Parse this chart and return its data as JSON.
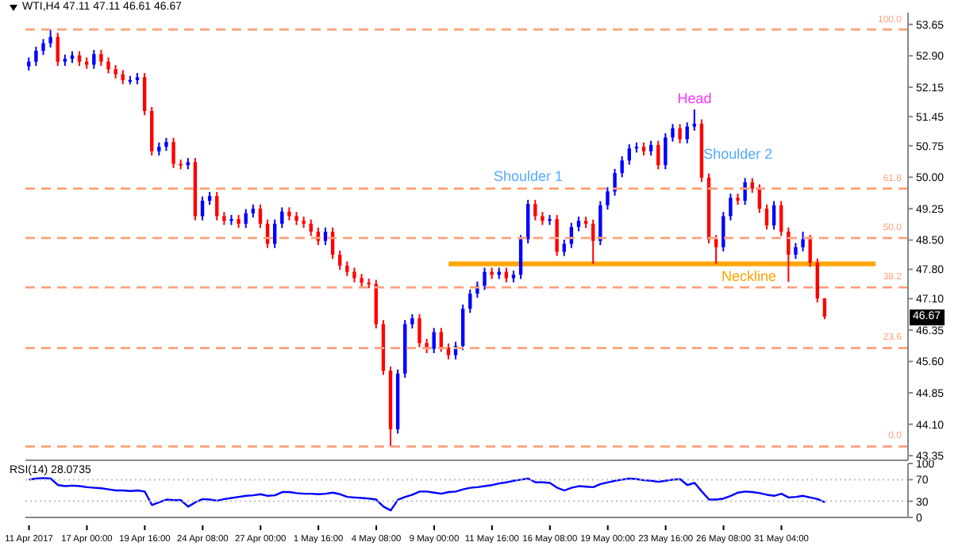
{
  "chart_data": [
    {
      "type": "candlestick",
      "title": "WTI,H4  47.11 47.11 46.61 46.67",
      "categories": [
        null,
        null,
        null,
        null,
        null,
        null,
        null,
        null,
        null,
        null,
        null,
        null,
        null,
        null,
        null,
        null,
        null,
        null,
        null,
        null,
        null,
        null,
        null,
        null,
        null,
        null,
        null,
        null,
        null,
        null,
        null,
        null,
        null,
        null,
        null,
        null,
        null,
        null,
        null,
        null,
        null,
        null,
        null,
        null,
        null,
        null,
        null,
        null,
        null,
        null,
        null,
        null,
        null,
        null,
        null,
        null,
        null,
        null,
        null,
        null,
        null,
        null,
        null,
        null,
        null,
        null,
        null,
        null,
        null,
        null,
        null,
        null,
        null,
        null,
        null,
        null,
        null,
        null,
        null,
        null,
        null,
        null,
        null,
        null,
        null,
        null,
        null,
        null,
        null,
        null,
        null,
        null,
        null,
        null,
        null,
        null,
        null,
        null,
        null,
        null,
        null,
        null,
        null,
        null,
        null,
        null,
        null,
        null,
        null,
        null,
        null,
        null,
        null,
        null,
        null,
        null,
        null,
        null,
        null,
        null,
        null,
        null
      ],
      "ohlc": [
        [
          52.65,
          52.86,
          52.55,
          52.76
        ],
        [
          52.76,
          53.12,
          52.66,
          53.02
        ],
        [
          53.02,
          53.3,
          52.92,
          53.2
        ],
        [
          53.2,
          53.53,
          53.1,
          53.35
        ],
        [
          53.35,
          53.45,
          52.66,
          52.76
        ],
        [
          52.76,
          52.93,
          52.66,
          52.83
        ],
        [
          52.83,
          53.01,
          52.73,
          52.91
        ],
        [
          52.91,
          53.01,
          52.66,
          52.76
        ],
        [
          52.76,
          52.86,
          52.59,
          52.69
        ],
        [
          52.69,
          53.04,
          52.59,
          52.94
        ],
        [
          52.94,
          53.04,
          52.66,
          52.76
        ],
        [
          52.76,
          52.86,
          52.48,
          52.58
        ],
        [
          52.58,
          52.68,
          52.36,
          52.46
        ],
        [
          52.46,
          52.56,
          52.22,
          52.32
        ],
        [
          52.32,
          52.42,
          52.22,
          52.32
        ],
        [
          52.32,
          52.49,
          52.22,
          52.39
        ],
        [
          52.39,
          52.49,
          51.48,
          51.58
        ],
        [
          51.58,
          51.68,
          50.52,
          50.62
        ],
        [
          50.62,
          50.83,
          50.52,
          50.73
        ],
        [
          50.73,
          50.94,
          50.63,
          50.84
        ],
        [
          50.84,
          50.94,
          50.22,
          50.32
        ],
        [
          50.32,
          50.42,
          50.19,
          50.29
        ],
        [
          50.29,
          50.46,
          50.19,
          50.36
        ],
        [
          50.36,
          50.46,
          48.97,
          49.07
        ],
        [
          49.07,
          49.54,
          48.97,
          49.44
        ],
        [
          49.44,
          49.65,
          49.34,
          49.55
        ],
        [
          49.55,
          49.65,
          48.97,
          49.07
        ],
        [
          49.07,
          49.17,
          48.86,
          48.96
        ],
        [
          48.96,
          49.1,
          48.86,
          49.0
        ],
        [
          49.0,
          49.1,
          48.79,
          48.89
        ],
        [
          48.89,
          49.24,
          48.79,
          49.14
        ],
        [
          49.14,
          49.35,
          49.04,
          49.25
        ],
        [
          49.25,
          49.35,
          48.79,
          48.89
        ],
        [
          48.89,
          48.99,
          48.31,
          48.41
        ],
        [
          48.41,
          48.99,
          48.31,
          48.89
        ],
        [
          48.89,
          49.28,
          48.79,
          49.18
        ],
        [
          49.18,
          49.28,
          48.97,
          49.07
        ],
        [
          49.07,
          49.17,
          48.86,
          48.96
        ],
        [
          48.96,
          49.06,
          48.79,
          48.89
        ],
        [
          48.89,
          48.99,
          48.6,
          48.7
        ],
        [
          48.7,
          48.8,
          48.38,
          48.48
        ],
        [
          48.48,
          48.8,
          48.38,
          48.7
        ],
        [
          48.7,
          48.8,
          48.05,
          48.15
        ],
        [
          48.15,
          48.25,
          47.79,
          47.89
        ],
        [
          47.89,
          47.99,
          47.64,
          47.74
        ],
        [
          47.74,
          47.84,
          47.49,
          47.59
        ],
        [
          47.59,
          47.69,
          47.38,
          47.48
        ],
        [
          47.48,
          47.58,
          47.35,
          47.45
        ],
        [
          47.45,
          47.55,
          46.39,
          46.49
        ],
        [
          46.49,
          46.59,
          45.28,
          45.38
        ],
        [
          45.38,
          45.48,
          43.57,
          43.98
        ],
        [
          43.98,
          45.41,
          43.88,
          45.31
        ],
        [
          45.31,
          46.59,
          45.21,
          46.49
        ],
        [
          46.49,
          46.73,
          46.39,
          46.63
        ],
        [
          46.63,
          46.73,
          45.94,
          46.04
        ],
        [
          46.04,
          46.14,
          45.8,
          45.9
        ],
        [
          45.9,
          46.4,
          45.8,
          46.3
        ],
        [
          46.3,
          46.4,
          45.83,
          45.93
        ],
        [
          45.93,
          46.03,
          45.65,
          45.75
        ],
        [
          45.75,
          46.07,
          45.65,
          45.97
        ],
        [
          45.97,
          46.96,
          45.87,
          46.86
        ],
        [
          46.86,
          47.32,
          46.76,
          47.22
        ],
        [
          47.22,
          47.51,
          47.12,
          47.41
        ],
        [
          47.41,
          47.84,
          47.31,
          47.74
        ],
        [
          47.74,
          47.84,
          47.57,
          47.67
        ],
        [
          47.67,
          47.84,
          47.57,
          47.74
        ],
        [
          47.74,
          47.84,
          47.49,
          47.59
        ],
        [
          47.59,
          47.77,
          47.49,
          47.67
        ],
        [
          47.67,
          48.62,
          47.57,
          48.52
        ],
        [
          48.52,
          49.46,
          48.42,
          49.36
        ],
        [
          49.36,
          49.46,
          48.97,
          49.07
        ],
        [
          49.07,
          49.17,
          48.86,
          48.96
        ],
        [
          48.96,
          49.1,
          48.86,
          49.0
        ],
        [
          49.0,
          49.1,
          48.12,
          48.22
        ],
        [
          48.22,
          48.51,
          48.12,
          48.41
        ],
        [
          48.41,
          48.91,
          48.31,
          48.81
        ],
        [
          48.81,
          49.06,
          48.71,
          48.96
        ],
        [
          48.96,
          49.06,
          48.79,
          48.89
        ],
        [
          48.89,
          48.99,
          47.93,
          48.48
        ],
        [
          48.48,
          49.43,
          48.38,
          49.33
        ],
        [
          49.33,
          49.76,
          49.23,
          49.66
        ],
        [
          49.66,
          50.2,
          49.56,
          50.1
        ],
        [
          50.1,
          50.5,
          50.0,
          50.4
        ],
        [
          50.4,
          50.79,
          50.3,
          50.69
        ],
        [
          50.69,
          50.83,
          50.59,
          50.73
        ],
        [
          50.73,
          50.83,
          50.52,
          50.62
        ],
        [
          50.62,
          50.87,
          50.52,
          50.77
        ],
        [
          50.77,
          50.87,
          50.19,
          50.29
        ],
        [
          50.29,
          51.05,
          50.19,
          50.95
        ],
        [
          50.95,
          51.27,
          50.85,
          51.17
        ],
        [
          51.17,
          51.27,
          50.81,
          50.91
        ],
        [
          50.91,
          51.31,
          50.81,
          51.21
        ],
        [
          51.21,
          51.62,
          51.11,
          51.28
        ],
        [
          51.28,
          51.38,
          49.89,
          49.99
        ],
        [
          49.99,
          50.09,
          48.42,
          48.52
        ],
        [
          48.52,
          48.62,
          47.93,
          48.33
        ],
        [
          48.33,
          49.17,
          48.23,
          49.07
        ],
        [
          49.07,
          49.61,
          48.97,
          49.51
        ],
        [
          49.51,
          49.61,
          49.34,
          49.44
        ],
        [
          49.44,
          49.98,
          49.34,
          49.88
        ],
        [
          49.88,
          49.98,
          49.63,
          49.73
        ],
        [
          49.73,
          49.83,
          49.15,
          49.25
        ],
        [
          49.25,
          49.35,
          48.75,
          48.85
        ],
        [
          48.85,
          49.43,
          48.75,
          49.33
        ],
        [
          49.33,
          49.43,
          48.6,
          48.7
        ],
        [
          48.7,
          48.8,
          47.5,
          48.15
        ],
        [
          48.15,
          48.43,
          48.05,
          48.33
        ],
        [
          48.33,
          48.7,
          48.23,
          48.52
        ],
        [
          48.52,
          48.62,
          47.86,
          47.96
        ],
        [
          47.96,
          48.06,
          47.01,
          47.11
        ],
        [
          47.11,
          47.11,
          46.61,
          46.67
        ],
        null,
        null,
        null,
        null,
        null,
        null,
        null,
        null,
        null,
        null,
        null
      ],
      "colors": [
        "#0000ff",
        "#0000ff",
        "#0000ff",
        "#0000ff",
        "#ff0000",
        "#0000ff",
        "#0000ff",
        "#ff0000",
        "#ff0000",
        "#0000ff",
        "#ff0000",
        "#ff0000",
        "#ff0000",
        "#ff0000",
        "#0000ff",
        "#0000ff",
        "#ff0000",
        "#ff0000",
        "#0000ff",
        "#0000ff",
        "#ff0000",
        "#ff0000",
        "#0000ff",
        "#ff0000",
        "#0000ff",
        "#0000ff",
        "#ff0000",
        "#ff0000",
        "#0000ff",
        "#ff0000",
        "#0000ff",
        "#0000ff",
        "#ff0000",
        "#ff0000",
        "#0000ff",
        "#0000ff",
        "#ff0000",
        "#ff0000",
        "#ff0000",
        "#ff0000",
        "#ff0000",
        "#0000ff",
        "#ff0000",
        "#ff0000",
        "#ff0000",
        "#ff0000",
        "#ff0000",
        "#ff0000",
        "#ff0000",
        "#ff0000",
        "#ff0000",
        "#0000ff",
        "#0000ff",
        "#0000ff",
        "#ff0000",
        "#ff0000",
        "#0000ff",
        "#ff0000",
        "#ff0000",
        "#0000ff",
        "#0000ff",
        "#0000ff",
        "#0000ff",
        "#0000ff",
        "#ff0000",
        "#0000ff",
        "#ff0000",
        "#0000ff",
        "#0000ff",
        "#0000ff",
        "#ff0000",
        "#ff0000",
        "#0000ff",
        "#ff0000",
        "#0000ff",
        "#0000ff",
        "#0000ff",
        "#ff0000",
        "#ff0000",
        "#0000ff",
        "#0000ff",
        "#0000ff",
        "#0000ff",
        "#0000ff",
        "#0000ff",
        "#ff0000",
        "#0000ff",
        "#ff0000",
        "#0000ff",
        "#0000ff",
        "#ff0000",
        "#0000ff",
        "#0000ff",
        "#ff0000",
        "#ff0000",
        "#ff0000",
        "#0000ff",
        "#0000ff",
        "#ff0000",
        "#0000ff",
        "#ff0000",
        "#ff0000",
        "#ff0000",
        "#0000ff",
        "#ff0000",
        "#ff0000",
        "#0000ff",
        "#0000ff",
        "#ff0000",
        "#ff0000",
        "#ff0000",
        null,
        null,
        null,
        null,
        null,
        null,
        null,
        null,
        null,
        null,
        null
      ],
      "series": [
        {
          "type": "line",
          "name": "Neckline",
          "color": "#ffa500",
          "values": [
            null,
            null,
            null,
            null,
            null,
            null,
            null,
            null,
            null,
            null,
            null,
            null,
            null,
            null,
            null,
            null,
            null,
            null,
            null,
            null,
            null,
            null,
            null,
            null,
            null,
            null,
            null,
            null,
            null,
            null,
            null,
            null,
            null,
            null,
            null,
            null,
            null,
            null,
            null,
            null,
            null,
            null,
            null,
            null,
            null,
            null,
            null,
            null,
            null,
            null,
            null,
            null,
            null,
            null,
            null,
            null,
            null,
            null,
            47.93,
            null,
            null,
            null,
            null,
            null,
            null,
            null,
            null,
            null,
            null,
            null,
            null,
            null,
            null,
            null,
            null,
            null,
            null,
            null,
            null,
            null,
            null,
            null,
            null,
            null,
            null,
            null,
            null,
            null,
            null,
            null,
            null,
            null,
            null,
            null,
            null,
            null,
            null,
            null,
            null,
            null,
            null,
            null,
            null,
            null,
            null,
            null,
            null,
            null,
            null,
            null,
            null,
            null,
            null,
            null,
            null,
            null,
            null,
            47.93,
            null,
            null,
            null,
            null
          ]
        }
      ],
      "ylim": [
        43.24,
        53.93
      ],
      "yticks": [
        43.35,
        {
          "value": 44.1,
          "label": "44.10"
        },
        44.85,
        {
          "value": 45.6,
          "label": "45.60"
        },
        46.35,
        {
          "value": 47.1,
          "label": "47.10"
        },
        {
          "value": 47.8,
          "label": "47.80"
        },
        {
          "value": 48.5,
          "label": "48.50"
        },
        49.25,
        {
          "value": 50,
          "label": "50.00"
        },
        50.75,
        51.45,
        52.15,
        {
          "value": 52.9,
          "label": "52.90"
        },
        53.65
      ],
      "ref_lines": [
        {
          "axis": "y",
          "value": 53.53,
          "color": "#ffa07a",
          "line_style": "dashed"
        },
        {
          "axis": "y",
          "value": 49.73,
          "color": "#ffa07a",
          "line_style": "dashed"
        },
        {
          "axis": "y",
          "value": 48.55,
          "color": "#ffa07a",
          "line_style": "dashed"
        },
        {
          "axis": "y",
          "value": 47.37,
          "color": "#ffa07a",
          "line_style": "dashed"
        },
        {
          "axis": "y",
          "value": 45.92,
          "color": "#ffa07a",
          "line_style": "dashed"
        },
        {
          "axis": "y",
          "value": 43.57,
          "color": "#ffa07a",
          "line_style": "dashed"
        }
      ],
      "annotations": [
        {
          "text": "Shoulder 1",
          "y": 49.46
        },
        "Head",
        {
          "text": "Shoulder 2",
          "y": 49.98
        },
        {
          "text": "100.0",
          "y": 53.53
        },
        {
          "text": "61.8",
          "y": 49.73
        },
        {
          "text": "50.0",
          "y": 48.55
        },
        {
          "text": "38.2",
          "y": 47.37
        },
        {
          "text": "23.6",
          "y": 45.92
        },
        {
          "text": "0.0",
          "y": 43.57
        },
        {
          "text": "46.67",
          "y": 46.67
        }
      ],
      "tick_labels": "y"
    },
    {
      "type": "line",
      "title": "RSI(14) 28.0735",
      "categories": [
        "11 Apr 2017",
        null,
        null,
        null,
        null,
        null,
        null,
        null,
        "17 Apr 00:00",
        null,
        null,
        null,
        null,
        null,
        null,
        null,
        "19 Apr 16:00",
        null,
        null,
        null,
        null,
        null,
        null,
        null,
        "24 Apr 08:00",
        null,
        null,
        null,
        null,
        null,
        null,
        null,
        "27 Apr 00:00",
        null,
        null,
        null,
        null,
        null,
        null,
        null,
        "1 May 16:00",
        null,
        null,
        null,
        null,
        null,
        null,
        null,
        "4 May 08:00",
        null,
        null,
        null,
        null,
        null,
        null,
        null,
        "9 May 00:00",
        null,
        null,
        null,
        null,
        null,
        null,
        null,
        "11 May 16:00",
        null,
        null,
        null,
        null,
        null,
        null,
        null,
        "16 May 08:00",
        null,
        null,
        null,
        null,
        null,
        null,
        null,
        "19 May 00:00",
        null,
        null,
        null,
        null,
        null,
        null,
        null,
        "23 May 16:00",
        null,
        null,
        null,
        null,
        null,
        null,
        null,
        "26 May 08:00",
        null,
        null,
        null,
        null,
        null,
        null,
        null,
        "31 May 04:00",
        null,
        null,
        null,
        null,
        null,
        null,
        null,
        null,
        null,
        null,
        null,
        null,
        null,
        null,
        null,
        null,
        null
      ],
      "series": [
        {
          "color": "#0000ff",
          "values": [
            70,
            72,
            73,
            72,
            60,
            58,
            59,
            58,
            56,
            55,
            54,
            52,
            50,
            50,
            49,
            50,
            48,
            23,
            28,
            33,
            32,
            32,
            20,
            28,
            34,
            33,
            31,
            34,
            36,
            38,
            40,
            41,
            43,
            40,
            41,
            47,
            47,
            45,
            44,
            44,
            43,
            44,
            46,
            43,
            38,
            37,
            36,
            35,
            33,
            20,
            13,
            33,
            38,
            42,
            48,
            48,
            46,
            44,
            47,
            48,
            52,
            55,
            56,
            58,
            60,
            63,
            65,
            68,
            70,
            72,
            65,
            65,
            64,
            55,
            50,
            55,
            58,
            57,
            56,
            62,
            65,
            68,
            70,
            72,
            71,
            69,
            68,
            66,
            68,
            70,
            71,
            60,
            64,
            48,
            33,
            33,
            35,
            40,
            46,
            48,
            47,
            45,
            42,
            40,
            44,
            37,
            38,
            40,
            37,
            34,
            28,
            null,
            null,
            null,
            null,
            null,
            null,
            null,
            null,
            null,
            null,
            null
          ]
        }
      ],
      "ylim": [
        0,
        100
      ],
      "yticks": [
        0,
        30,
        70,
        100
      ],
      "ref_lines": [
        {
          "axis": "y",
          "value": 30,
          "color": "#c0c0c0",
          "line_style": "dotted"
        },
        {
          "axis": "y",
          "value": 70,
          "color": "#c0c0c0",
          "line_style": "dotted"
        }
      ]
    }
  ]
}
